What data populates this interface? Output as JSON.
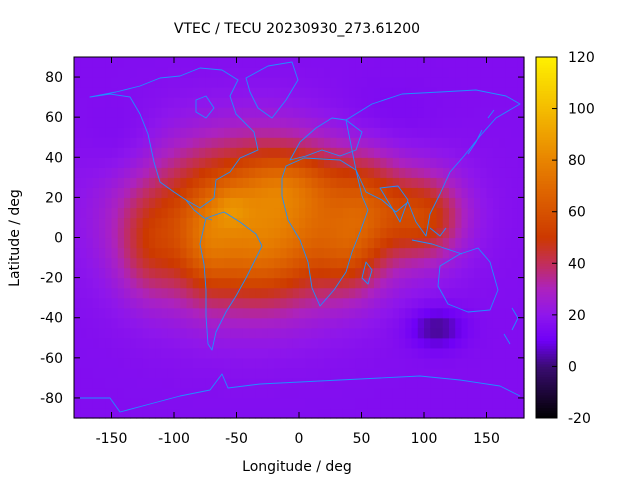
{
  "chart_data": {
    "type": "heatmap",
    "title": "VTEC / TECU 20230930_273.61200",
    "xlabel": "Longitude / deg",
    "ylabel": "Latitude / deg",
    "xlim": [
      -180,
      180
    ],
    "ylim": [
      -90,
      90
    ],
    "x_ticks": [
      -150,
      -100,
      -50,
      0,
      50,
      100,
      150
    ],
    "y_ticks": [
      -80,
      -60,
      -40,
      -20,
      0,
      20,
      40,
      60,
      80
    ],
    "colorbar": {
      "range": [
        -20,
        120
      ],
      "ticks": [
        -20,
        0,
        20,
        40,
        60,
        80,
        100,
        120
      ],
      "palette_stops": [
        {
          "value": -20,
          "color": "#000000"
        },
        {
          "value": 0,
          "color": "#3a0c72"
        },
        {
          "value": 10,
          "color": "#6f00f6"
        },
        {
          "value": 20,
          "color": "#8e16ec"
        },
        {
          "value": 30,
          "color": "#ac22bf"
        },
        {
          "value": 40,
          "color": "#c22e5a"
        },
        {
          "value": 50,
          "color": "#cc3800"
        },
        {
          "value": 60,
          "color": "#d65200"
        },
        {
          "value": 70,
          "color": "#e06a00"
        },
        {
          "value": 80,
          "color": "#e88400"
        },
        {
          "value": 90,
          "color": "#eea000"
        },
        {
          "value": 100,
          "color": "#f4bc00"
        },
        {
          "value": 110,
          "color": "#f8d600"
        },
        {
          "value": 120,
          "color": "#fff000"
        }
      ]
    },
    "background_value": 16,
    "features": [
      {
        "lon": -20,
        "lat": 15,
        "rx": 100,
        "ry": 35,
        "amp": 38
      },
      {
        "lon": -40,
        "lat": 0,
        "rx": 80,
        "ry": 40,
        "amp": 26
      },
      {
        "lon": -10,
        "lat": 28,
        "rx": 35,
        "ry": 15,
        "amp": 12
      },
      {
        "lon": -30,
        "lat": -15,
        "rx": 40,
        "ry": 20,
        "amp": 10
      },
      {
        "lon": -75,
        "lat": -5,
        "rx": 20,
        "ry": 25,
        "amp": 14
      },
      {
        "lon": -55,
        "lat": 15,
        "rx": 15,
        "ry": 10,
        "amp": 10
      },
      {
        "lon": 100,
        "lat": 10,
        "rx": 30,
        "ry": 20,
        "amp": 30
      },
      {
        "lon": 55,
        "lat": 15,
        "rx": 25,
        "ry": 25,
        "amp": 18
      },
      {
        "lon": -120,
        "lat": -5,
        "rx": 25,
        "ry": 25,
        "amp": 15
      },
      {
        "lon": 40,
        "lat": -10,
        "rx": 25,
        "ry": 20,
        "amp": 15
      },
      {
        "lon": 110,
        "lat": -45,
        "rx": 22,
        "ry": 10,
        "amp": -14
      },
      {
        "lon": 60,
        "lat": 55,
        "rx": 50,
        "ry": 20,
        "amp": -5
      },
      {
        "lon": -140,
        "lat": 45,
        "rx": 30,
        "ry": 20,
        "amp": -4
      }
    ]
  }
}
